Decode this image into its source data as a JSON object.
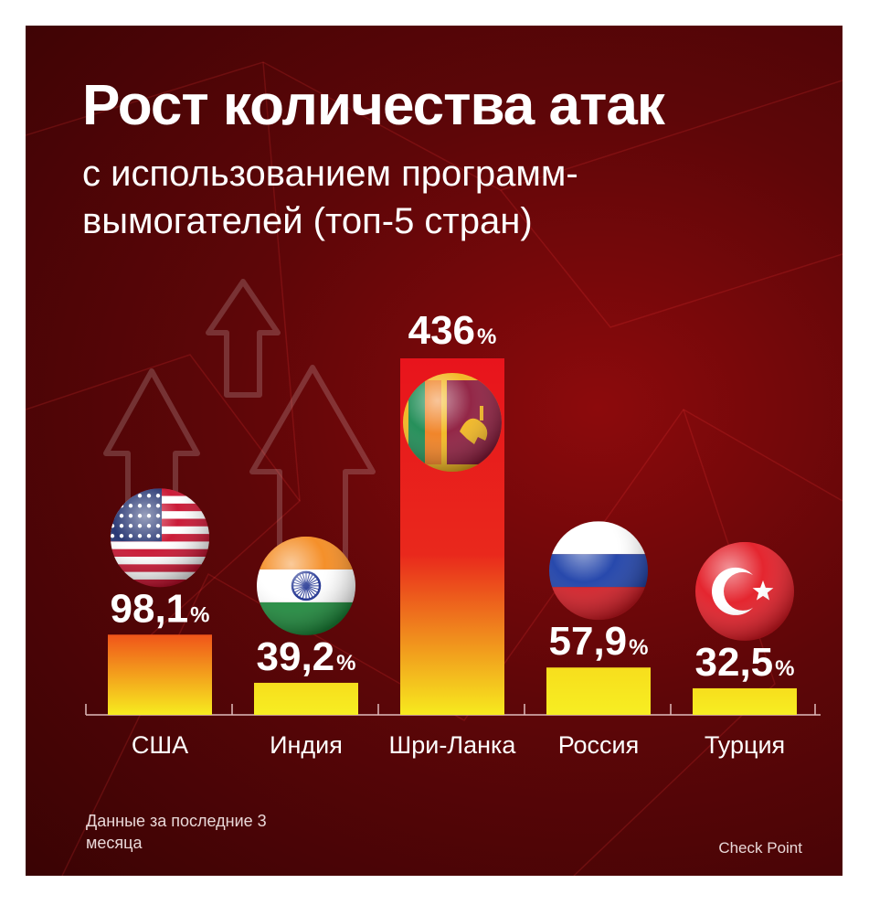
{
  "title": "Рост количества атак",
  "subtitle": "с использованием программ-вымогателей (топ-5 стран)",
  "footnote": "Данные за последние 3 месяца",
  "source": "Check Point",
  "chart_data": {
    "type": "bar",
    "title": "Рост количества атак",
    "subtitle": "с использованием программ-вымогателей (топ-5 стран)",
    "categories": [
      "США",
      "Индия",
      "Шри-Ланка",
      "Россия",
      "Турция"
    ],
    "values": [
      98.1,
      39.2,
      436,
      57.9,
      32.5
    ],
    "value_labels": [
      "98,1",
      "39,2",
      "436",
      "57,9",
      "32,5"
    ],
    "unit": "%",
    "flags": [
      "usa-flag-icon",
      "india-flag-icon",
      "sri-lanka-flag-icon",
      "russia-flag-icon",
      "turkey-flag-icon"
    ],
    "highlight_color": "#e8141c",
    "low_color": "#f5ea1e",
    "ylim": [
      0,
      436
    ],
    "grid": false,
    "legend": "none"
  }
}
